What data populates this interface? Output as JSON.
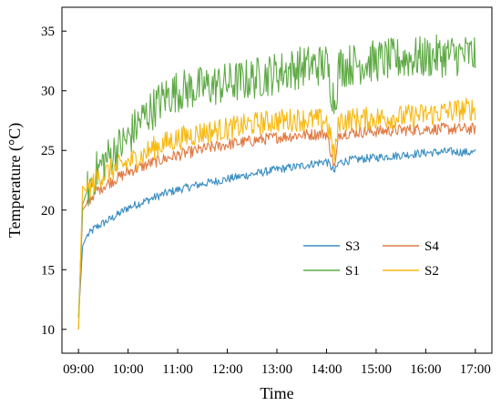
{
  "chart_data": {
    "type": "line",
    "title": "",
    "xlabel": "Time",
    "ylabel": "Temperature (°C)",
    "xlim": [
      "08:40",
      "17:20"
    ],
    "ylim": [
      8,
      37
    ],
    "grid": false,
    "legend": "lower-right",
    "x_ticks": [
      "09:00",
      "10:00",
      "11:00",
      "12:00",
      "13:00",
      "14:00",
      "15:00",
      "16:00",
      "17:00"
    ],
    "y_ticks": [
      10,
      15,
      20,
      25,
      30,
      35
    ],
    "x": [
      "09:00",
      "09:05",
      "09:10",
      "09:20",
      "09:30",
      "09:45",
      "10:00",
      "10:15",
      "10:30",
      "10:45",
      "11:00",
      "11:30",
      "12:00",
      "12:30",
      "13:00",
      "13:30",
      "14:00",
      "14:10",
      "14:15",
      "14:30",
      "15:00",
      "15:30",
      "16:00",
      "16:30",
      "17:00"
    ],
    "series": [
      {
        "name": "S3",
        "color": "#3a8dc0",
        "noise": 0.35,
        "values": [
          11.0,
          17.0,
          17.8,
          18.5,
          18.9,
          19.5,
          20.2,
          20.6,
          21.0,
          21.4,
          21.7,
          22.2,
          22.6,
          23.0,
          23.4,
          23.7,
          24.1,
          23.2,
          24.0,
          24.2,
          24.4,
          24.6,
          24.8,
          24.9,
          24.8
        ]
      },
      {
        "name": "S4",
        "color": "#e07a43",
        "noise": 0.5,
        "values": [
          10.0,
          20.0,
          20.5,
          21.5,
          22.0,
          22.6,
          23.2,
          23.6,
          24.0,
          24.3,
          24.6,
          25.1,
          25.5,
          25.8,
          26.1,
          26.3,
          26.4,
          23.5,
          26.4,
          26.5,
          26.6,
          26.7,
          26.8,
          26.8,
          26.8
        ]
      },
      {
        "name": "S1",
        "color": "#5faa46",
        "noise": 1.8,
        "values": [
          11.0,
          20.5,
          21.5,
          23.0,
          24.0,
          25.0,
          26.0,
          27.5,
          28.5,
          29.5,
          30.0,
          30.3,
          30.6,
          31.0,
          31.5,
          32.0,
          32.2,
          29.0,
          32.0,
          32.2,
          32.5,
          32.7,
          32.8,
          33.0,
          33.0
        ]
      },
      {
        "name": "S2",
        "color": "#f7b911",
        "noise": 1.0,
        "values": [
          10.0,
          22.0,
          21.5,
          22.5,
          23.0,
          23.5,
          24.0,
          24.5,
          25.2,
          25.6,
          26.0,
          26.5,
          26.8,
          27.2,
          27.5,
          27.6,
          27.5,
          24.5,
          27.5,
          27.6,
          27.7,
          27.8,
          28.0,
          28.3,
          28.5
        ]
      }
    ]
  }
}
